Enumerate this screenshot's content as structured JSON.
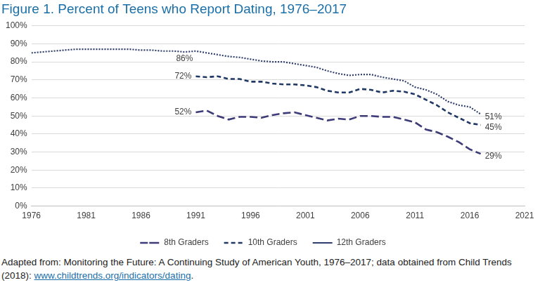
{
  "chart_data": {
    "type": "line",
    "title": "Figure 1. Percent of Teens who Report Dating, 1976–2017",
    "source": {
      "text": "Adapted from: Monitoring the Future: A Continuing Study of American Youth, 1976–2017; data obtained from Child Trends (2018): ",
      "link": "www.childtrends.org/indicators/dating",
      "end": "."
    },
    "x": [
      1976,
      1977,
      1978,
      1979,
      1980,
      1981,
      1982,
      1983,
      1984,
      1985,
      1986,
      1987,
      1988,
      1989,
      1990,
      1991,
      1992,
      1993,
      1994,
      1995,
      1996,
      1997,
      1998,
      1999,
      2000,
      2001,
      2002,
      2003,
      2004,
      2005,
      2006,
      2007,
      2008,
      2009,
      2010,
      2011,
      2012,
      2013,
      2014,
      2015,
      2016,
      2017
    ],
    "series": [
      {
        "name": "8th Graders",
        "color": "#3d3b78",
        "line_style": "long_dash",
        "values": [
          null,
          null,
          null,
          null,
          null,
          null,
          null,
          null,
          null,
          null,
          null,
          null,
          null,
          null,
          null,
          52,
          53,
          50,
          48,
          49.5,
          49.5,
          49,
          50.5,
          51.5,
          52,
          50.5,
          49,
          47.5,
          48.5,
          48,
          50,
          50,
          49.5,
          49.5,
          48,
          46.5,
          42.5,
          41,
          38.5,
          35.5,
          31.5,
          29
        ]
      },
      {
        "name": "10th Graders",
        "color": "#1f3864",
        "line_style": "dash",
        "values": [
          null,
          null,
          null,
          null,
          null,
          null,
          null,
          null,
          null,
          null,
          null,
          null,
          null,
          null,
          null,
          72,
          71.5,
          72,
          70.5,
          70.5,
          69,
          69,
          68,
          67.5,
          67.5,
          67,
          66,
          64,
          63,
          63,
          65,
          64.5,
          63,
          64,
          63.5,
          62,
          59,
          56,
          52,
          49,
          46,
          45
        ]
      },
      {
        "name": "12th Graders",
        "color": "#2e3d6b",
        "line_style": "dot",
        "values": [
          85,
          85.5,
          86,
          86.5,
          87,
          87,
          87,
          87,
          87,
          87,
          86.5,
          86.5,
          86,
          86,
          85.5,
          86,
          85,
          84,
          83,
          82.5,
          81.5,
          80.5,
          80,
          80,
          79,
          78,
          77,
          75,
          73.5,
          72.5,
          73,
          73,
          71.5,
          70.5,
          69.5,
          66,
          64.5,
          62,
          58,
          56,
          55,
          51
        ]
      }
    ],
    "annotations": [
      {
        "text": "86%",
        "x": 1991,
        "y": 86,
        "series": "12th Graders"
      },
      {
        "text": "72%",
        "x": 1991,
        "y": 72,
        "series": "10th Graders"
      },
      {
        "text": "52%",
        "x": 1991,
        "y": 52,
        "series": "8th Graders"
      },
      {
        "text": "51%",
        "x": 2017,
        "y": 51,
        "series": "12th Graders"
      },
      {
        "text": "45%",
        "x": 2017,
        "y": 45,
        "series": "10th Graders"
      },
      {
        "text": "29%",
        "x": 2017,
        "y": 29,
        "series": "8th Graders"
      }
    ],
    "xlim": [
      1976,
      2021
    ],
    "xticks": [
      1976,
      1981,
      1986,
      1991,
      1996,
      2001,
      2006,
      2011,
      2016,
      2021
    ],
    "ylim": [
      0,
      100
    ],
    "yticks": [
      {
        "value": 0,
        "label": "0%"
      },
      {
        "value": 10,
        "label": "10%"
      },
      {
        "value": 20,
        "label": "20%"
      },
      {
        "value": 30,
        "label": "30%"
      },
      {
        "value": 40,
        "label": "40%"
      },
      {
        "value": 50,
        "label": "50%"
      },
      {
        "value": 60,
        "label": "60%"
      },
      {
        "value": 70,
        "label": "70%"
      },
      {
        "value": 80,
        "label": "80%"
      },
      {
        "value": 90,
        "label": "90%"
      },
      {
        "value": 100,
        "label": "100%"
      }
    ],
    "grid": true,
    "legend": "bottom"
  }
}
